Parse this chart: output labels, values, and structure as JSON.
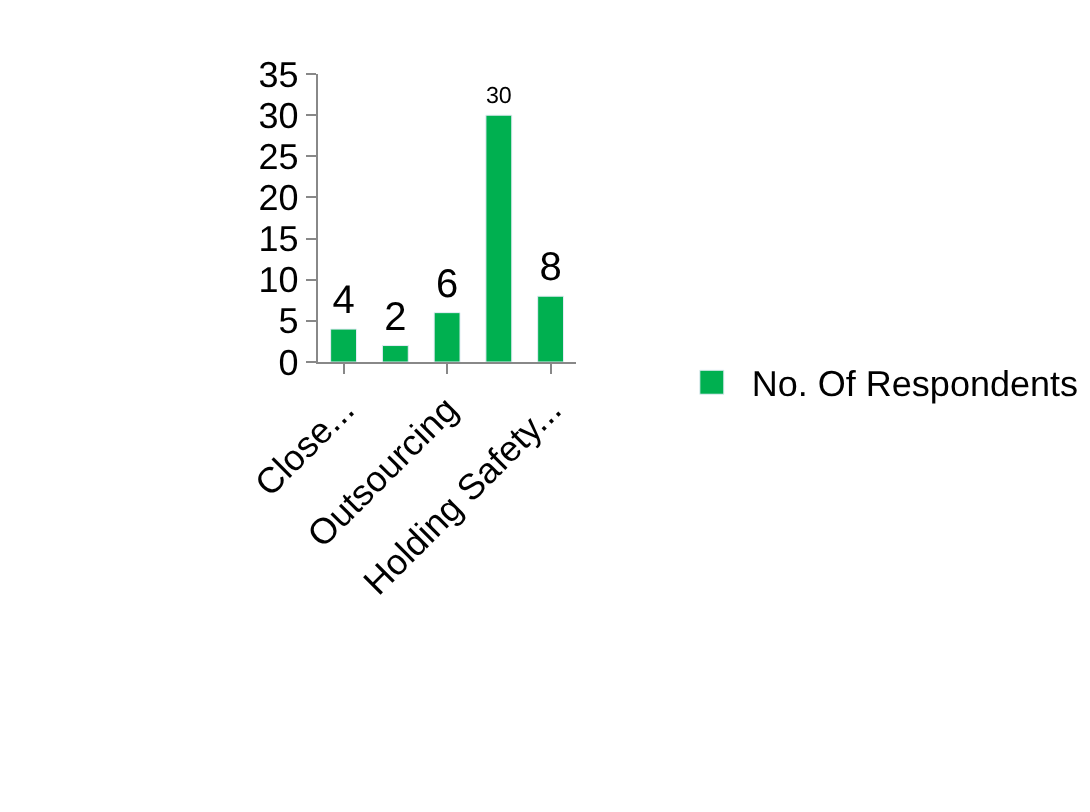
{
  "chart_data": {
    "type": "bar",
    "categories": [
      "Close...",
      null,
      "Outsourcing",
      null,
      "Holding Safety..."
    ],
    "series": [
      {
        "name": "No. Of Respondents",
        "color": "#00b050",
        "values": [
          4,
          2,
          6,
          30,
          8
        ]
      }
    ],
    "ylim": [
      0,
      35
    ],
    "yticks": [
      0,
      5,
      10,
      15,
      20,
      25,
      30,
      35
    ],
    "data_labels": true,
    "grid": false,
    "legend": "right"
  }
}
